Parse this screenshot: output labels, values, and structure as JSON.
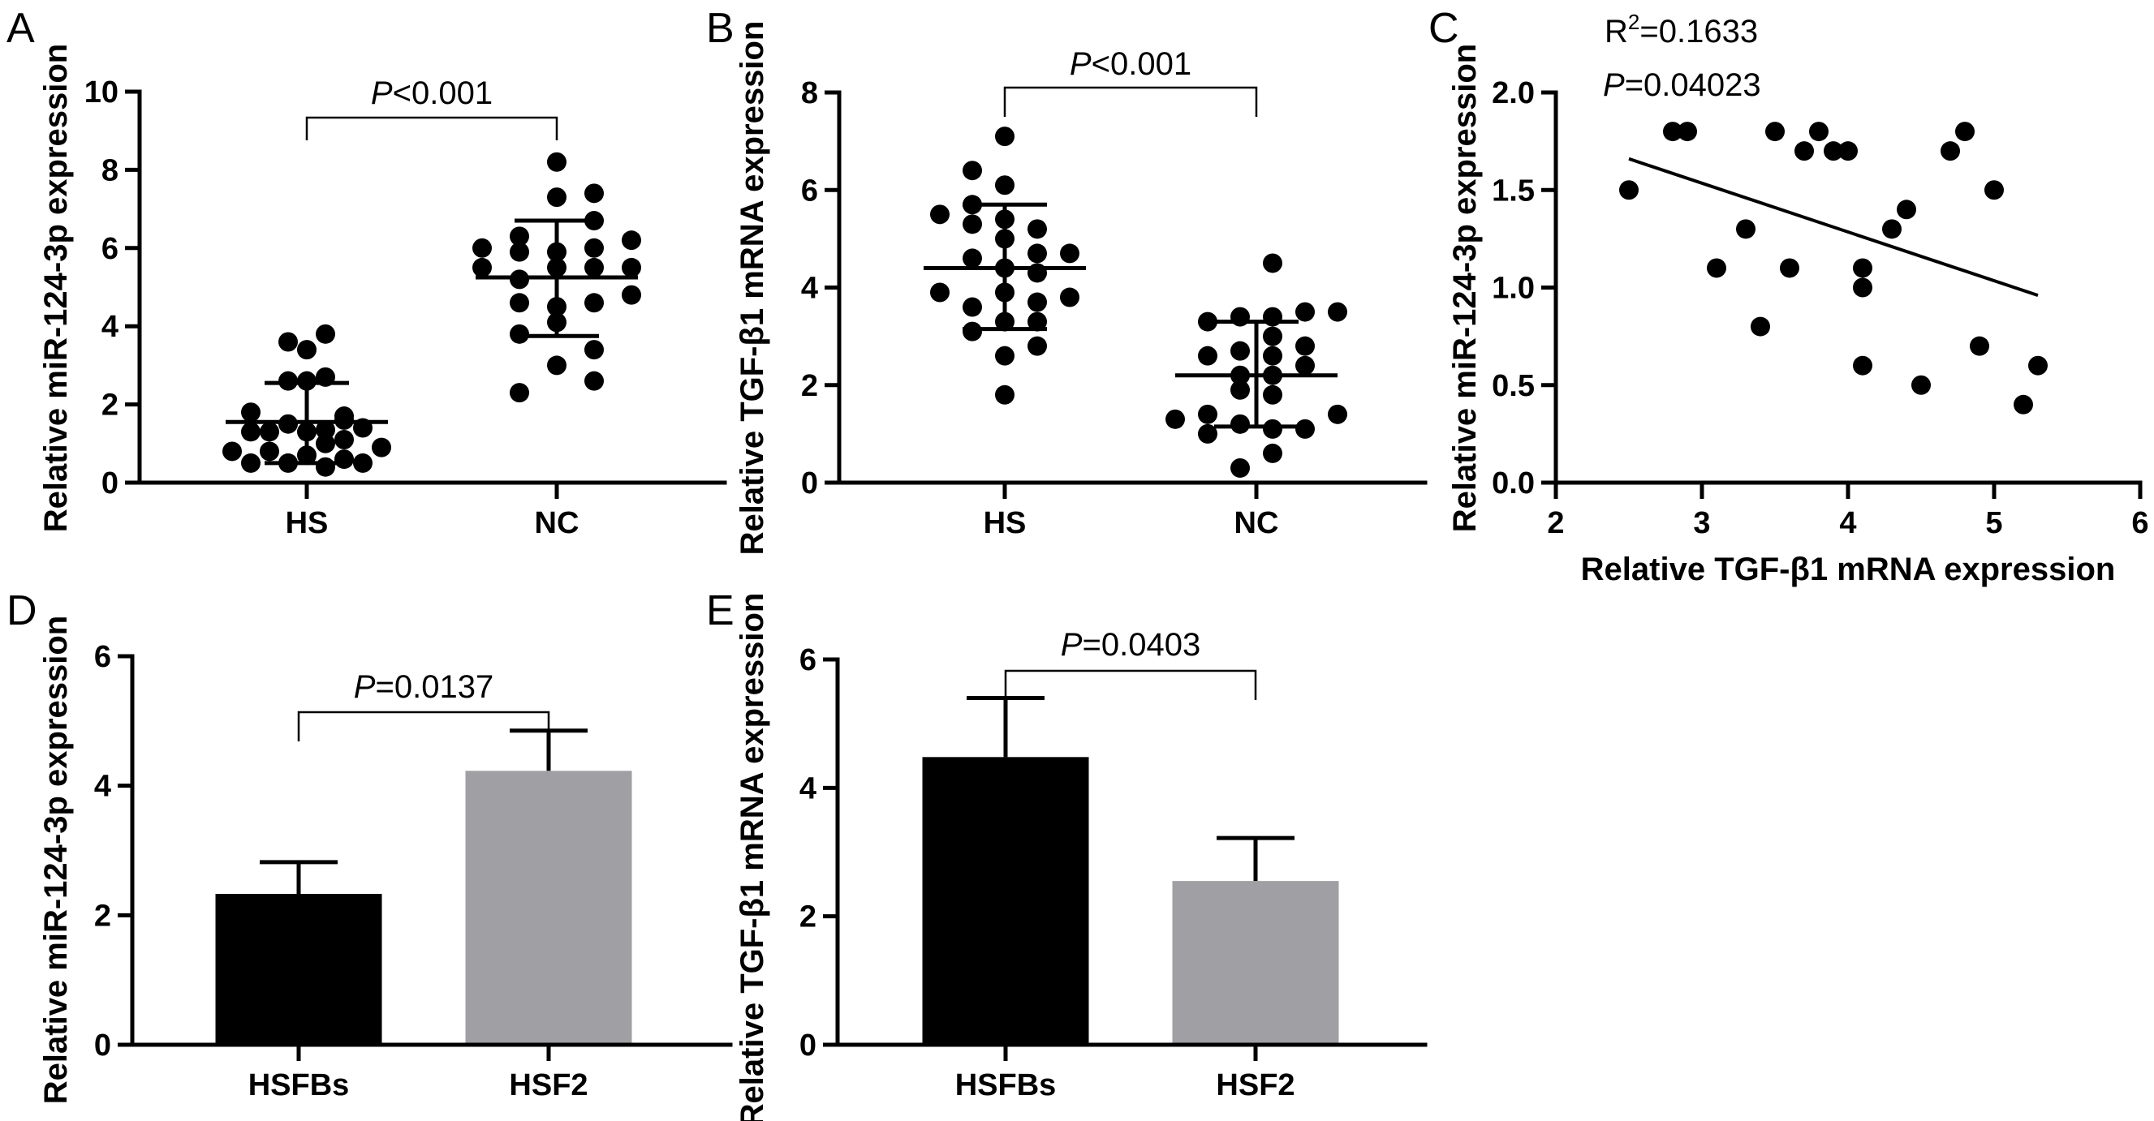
{
  "figure": {
    "panel_letters": [
      "A",
      "B",
      "C",
      "D",
      "E"
    ]
  },
  "chart_data": [
    {
      "panel": "A",
      "type": "scatter",
      "subtype": "dot-plot-mean-sd",
      "title": "",
      "xlabel": "",
      "ylabel": "Relative miR-124-3p expression",
      "ylim": [
        0,
        10
      ],
      "yticks": [
        "0",
        "2",
        "4",
        "6",
        "8",
        "10"
      ],
      "categories": [
        "HS",
        "NC"
      ],
      "significance": {
        "label_italic": "P",
        "label_rest": "<0.001",
        "between": [
          "HS",
          "NC"
        ]
      },
      "groups": [
        {
          "name": "HS",
          "mean": 1.55,
          "sd_low": 0.5,
          "sd_high": 2.55,
          "points": [
            {
              "v": 3.6,
              "col": -1
            },
            {
              "v": 3.4,
              "col": 0
            },
            {
              "v": 3.8,
              "col": 1
            },
            {
              "v": 2.6,
              "col": -1
            },
            {
              "v": 2.6,
              "col": 0
            },
            {
              "v": 2.7,
              "col": 1
            },
            {
              "v": 1.8,
              "col": -3
            },
            {
              "v": 1.7,
              "col": 2
            },
            {
              "v": 1.3,
              "col": -3
            },
            {
              "v": 1.3,
              "col": -2
            },
            {
              "v": 1.5,
              "col": -1
            },
            {
              "v": 1.3,
              "col": 0
            },
            {
              "v": 1.35,
              "col": 1
            },
            {
              "v": 1.4,
              "col": 3
            },
            {
              "v": 1.6,
              "col": 2
            },
            {
              "v": 0.8,
              "col": -4
            },
            {
              "v": 0.8,
              "col": -2
            },
            {
              "v": 0.7,
              "col": 0
            },
            {
              "v": 1.0,
              "col": 1
            },
            {
              "v": 1.1,
              "col": 2
            },
            {
              "v": 0.9,
              "col": 4
            },
            {
              "v": 0.5,
              "col": -3
            },
            {
              "v": 0.5,
              "col": -1
            },
            {
              "v": 0.4,
              "col": 1
            },
            {
              "v": 0.6,
              "col": 2
            },
            {
              "v": 0.5,
              "col": 3
            }
          ]
        },
        {
          "name": "NC",
          "mean": 5.25,
          "sd_low": 3.75,
          "sd_high": 6.7,
          "points": [
            {
              "v": 8.2,
              "col": 0
            },
            {
              "v": 7.3,
              "col": 0
            },
            {
              "v": 7.4,
              "col": 2
            },
            {
              "v": 6.7,
              "col": 2
            },
            {
              "v": 6.0,
              "col": -4
            },
            {
              "v": 6.3,
              "col": -2
            },
            {
              "v": 5.9,
              "col": 0
            },
            {
              "v": 6.0,
              "col": 2
            },
            {
              "v": 6.2,
              "col": 4
            },
            {
              "v": 5.5,
              "col": -4
            },
            {
              "v": 5.9,
              "col": -2
            },
            {
              "v": 5.5,
              "col": 0
            },
            {
              "v": 5.5,
              "col": 2
            },
            {
              "v": 5.5,
              "col": 4
            },
            {
              "v": 5.2,
              "col": -2
            },
            {
              "v": 4.8,
              "col": 4
            },
            {
              "v": 4.6,
              "col": -2
            },
            {
              "v": 4.5,
              "col": 0
            },
            {
              "v": 4.6,
              "col": 2
            },
            {
              "v": 4.1,
              "col": 0
            },
            {
              "v": 3.8,
              "col": -2
            },
            {
              "v": 3.4,
              "col": 2
            },
            {
              "v": 3.0,
              "col": 0
            },
            {
              "v": 2.6,
              "col": 2
            },
            {
              "v": 2.3,
              "col": -2
            }
          ]
        }
      ]
    },
    {
      "panel": "B",
      "type": "scatter",
      "subtype": "dot-plot-mean-sd",
      "title": "",
      "xlabel": "",
      "ylabel": "Relative TGF-β1 mRNA expression",
      "ylim": [
        0,
        8
      ],
      "yticks": [
        "0",
        "2",
        "4",
        "6",
        "8"
      ],
      "categories": [
        "HS",
        "NC"
      ],
      "significance": {
        "label_italic": "P",
        "label_rest": "<0.001",
        "between": [
          "HS",
          "NC"
        ]
      },
      "groups": [
        {
          "name": "HS",
          "mean": 4.4,
          "sd_low": 3.15,
          "sd_high": 5.7,
          "points": [
            {
              "v": 7.1,
              "col": 0
            },
            {
              "v": 6.4,
              "col": -2
            },
            {
              "v": 6.1,
              "col": 0
            },
            {
              "v": 5.7,
              "col": -2
            },
            {
              "v": 5.5,
              "col": -4
            },
            {
              "v": 5.4,
              "col": 0
            },
            {
              "v": 5.3,
              "col": -2
            },
            {
              "v": 5.2,
              "col": 2
            },
            {
              "v": 5.0,
              "col": 0
            },
            {
              "v": 4.7,
              "col": 2
            },
            {
              "v": 4.7,
              "col": 4
            },
            {
              "v": 4.6,
              "col": -2
            },
            {
              "v": 4.4,
              "col": 0
            },
            {
              "v": 4.3,
              "col": 2
            },
            {
              "v": 3.9,
              "col": -4
            },
            {
              "v": 3.9,
              "col": 0
            },
            {
              "v": 3.8,
              "col": 4
            },
            {
              "v": 3.7,
              "col": 2
            },
            {
              "v": 3.6,
              "col": -2
            },
            {
              "v": 3.3,
              "col": 0
            },
            {
              "v": 3.3,
              "col": 2
            },
            {
              "v": 3.1,
              "col": -2
            },
            {
              "v": 2.8,
              "col": 2
            },
            {
              "v": 2.6,
              "col": 0
            },
            {
              "v": 1.8,
              "col": 0
            }
          ]
        },
        {
          "name": "NC",
          "mean": 2.2,
          "sd_low": 1.15,
          "sd_high": 3.3,
          "points": [
            {
              "v": 4.5,
              "col": 1
            },
            {
              "v": 3.5,
              "col": 3
            },
            {
              "v": 3.5,
              "col": 5
            },
            {
              "v": 3.3,
              "col": -3
            },
            {
              "v": 3.4,
              "col": -1
            },
            {
              "v": 3.4,
              "col": 1
            },
            {
              "v": 3.0,
              "col": 1
            },
            {
              "v": 2.8,
              "col": 3
            },
            {
              "v": 2.6,
              "col": -3
            },
            {
              "v": 2.7,
              "col": -1
            },
            {
              "v": 2.6,
              "col": 1
            },
            {
              "v": 2.4,
              "col": 3
            },
            {
              "v": 2.2,
              "col": -1
            },
            {
              "v": 2.2,
              "col": 1
            },
            {
              "v": 1.9,
              "col": -1
            },
            {
              "v": 1.8,
              "col": 1
            },
            {
              "v": 1.3,
              "col": -5
            },
            {
              "v": 1.4,
              "col": -3
            },
            {
              "v": 1.4,
              "col": 5
            },
            {
              "v": 1.0,
              "col": -3
            },
            {
              "v": 1.2,
              "col": -1
            },
            {
              "v": 1.1,
              "col": 1
            },
            {
              "v": 1.1,
              "col": 3
            },
            {
              "v": 0.6,
              "col": 1
            },
            {
              "v": 0.3,
              "col": -1
            }
          ]
        }
      ]
    },
    {
      "panel": "C",
      "type": "scatter",
      "title": "",
      "xlabel": "Relative TGF-β1 mRNA expression",
      "ylabel": "Relative miR-124-3p expression",
      "xlim": [
        2,
        6
      ],
      "ylim": [
        0,
        2.0
      ],
      "xticks": [
        "2",
        "3",
        "4",
        "5",
        "6"
      ],
      "yticks": [
        "0.0",
        "0.5",
        "1.0",
        "1.5",
        "2.0"
      ],
      "annotations": {
        "r2_prefix": "R",
        "r2_sup": "2",
        "r2_rest": "=0.1633",
        "p_italic": "P",
        "p_rest": "=0.04023"
      },
      "fit_line": {
        "x": [
          2.5,
          5.3
        ],
        "y": [
          1.66,
          0.96
        ]
      },
      "points": [
        {
          "x": 2.5,
          "y": 1.5
        },
        {
          "x": 2.8,
          "y": 1.8
        },
        {
          "x": 2.9,
          "y": 1.8
        },
        {
          "x": 3.1,
          "y": 1.1
        },
        {
          "x": 3.3,
          "y": 1.3
        },
        {
          "x": 3.4,
          "y": 0.8
        },
        {
          "x": 3.5,
          "y": 1.8
        },
        {
          "x": 3.6,
          "y": 1.1
        },
        {
          "x": 3.7,
          "y": 1.7
        },
        {
          "x": 3.8,
          "y": 1.8
        },
        {
          "x": 3.9,
          "y": 1.7
        },
        {
          "x": 4.0,
          "y": 1.7
        },
        {
          "x": 4.1,
          "y": 1.1
        },
        {
          "x": 4.1,
          "y": 1.0
        },
        {
          "x": 4.1,
          "y": 0.6
        },
        {
          "x": 4.3,
          "y": 1.3
        },
        {
          "x": 4.4,
          "y": 1.4
        },
        {
          "x": 4.5,
          "y": 0.5
        },
        {
          "x": 4.7,
          "y": 1.7
        },
        {
          "x": 4.8,
          "y": 1.8
        },
        {
          "x": 4.9,
          "y": 0.7
        },
        {
          "x": 5.0,
          "y": 1.5
        },
        {
          "x": 5.2,
          "y": 0.4
        },
        {
          "x": 5.3,
          "y": 0.6
        }
      ]
    },
    {
      "panel": "D",
      "type": "bar",
      "title": "",
      "xlabel": "",
      "ylabel": "Relative miR-124-3p expression",
      "ylim": [
        0,
        6
      ],
      "yticks": [
        "0",
        "2",
        "4",
        "6"
      ],
      "categories": [
        "HSFBs",
        "HSF2"
      ],
      "values": [
        2.33,
        4.23
      ],
      "error_upper": [
        2.82,
        4.85
      ],
      "colors": [
        "#000000",
        "#a0a0a4"
      ],
      "significance": {
        "label_italic": "P",
        "label_rest": "=0.0137",
        "between": [
          "HSFBs",
          "HSF2"
        ]
      }
    },
    {
      "panel": "E",
      "type": "bar",
      "title": "",
      "xlabel": "",
      "ylabel": "Relative TGF-β1 mRNA expression",
      "ylim": [
        0,
        6
      ],
      "yticks": [
        "0",
        "2",
        "4",
        "6"
      ],
      "categories": [
        "HSFBs",
        "HSF2"
      ],
      "values": [
        4.48,
        2.55
      ],
      "error_upper": [
        5.4,
        3.22
      ],
      "colors": [
        "#000000",
        "#a0a0a4"
      ],
      "significance": {
        "label_italic": "P",
        "label_rest": "=0.0403",
        "between": [
          "HSFBs",
          "HSF2"
        ]
      }
    }
  ]
}
